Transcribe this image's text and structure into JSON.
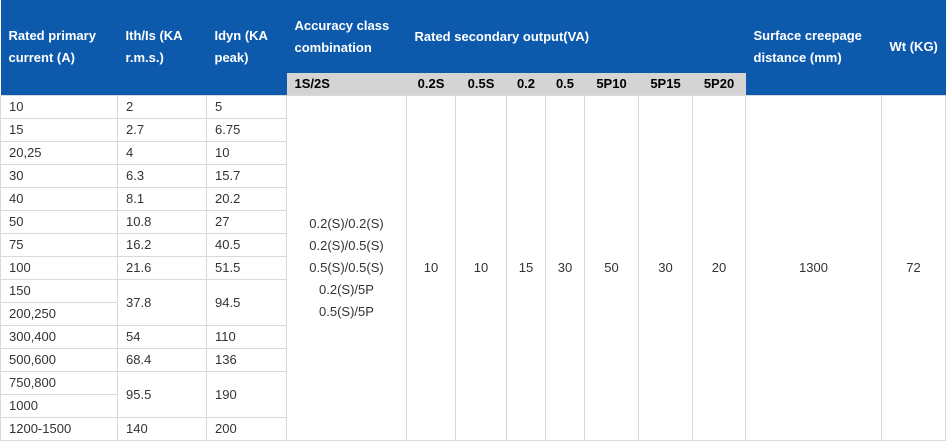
{
  "headers": {
    "rated_primary": "Rated primary current (A)",
    "ith": "Ith/Is (KA r.m.s.)",
    "idyn": "Idyn (KA peak)",
    "accuracy": "Accuracy class combination",
    "secondary": "Rated secondary output(VA)",
    "creepage": "Surface creepage distance (mm)",
    "wt": "Wt (KG)"
  },
  "subheaders": {
    "acc": "1S/2S",
    "o1": "0.2S",
    "o2": "0.5S",
    "o3": "0.2",
    "o4": "0.5",
    "o5": "5P10",
    "o6": "5P15",
    "o7": "5P20"
  },
  "rows": [
    {
      "current": "10",
      "ith": "2",
      "idyn": "5"
    },
    {
      "current": "15",
      "ith": "2.7",
      "idyn": "6.75"
    },
    {
      "current": "20,25",
      "ith": "4",
      "idyn": "10"
    },
    {
      "current": "30",
      "ith": "6.3",
      "idyn": "15.7"
    },
    {
      "current": "40",
      "ith": "8.1",
      "idyn": "20.2"
    },
    {
      "current": "50",
      "ith": "10.8",
      "idyn": "27"
    },
    {
      "current": "75",
      "ith": "16.2",
      "idyn": "40.5"
    },
    {
      "current": "100",
      "ith": "21.6",
      "idyn": "51.5"
    },
    {
      "current": "150",
      "ith": "37.8",
      "idyn": "94.5"
    },
    {
      "current": "200,250"
    },
    {
      "current": "300,400",
      "ith": "54",
      "idyn": "110"
    },
    {
      "current": "500,600",
      "ith": "68.4",
      "idyn": "136"
    },
    {
      "current": "750,800",
      "ith": "95.5",
      "idyn": "190"
    },
    {
      "current": "1000"
    },
    {
      "current": "1200-1500",
      "ith": "140",
      "idyn": "200"
    }
  ],
  "accuracy_lines": [
    "0.2(S)/0.2(S)",
    "0.2(S)/0.5(S)",
    "0.5(S)/0.5(S)",
    "0.2(S)/5P",
    "0.5(S)/5P"
  ],
  "outputs": {
    "o1": "10",
    "o2": "10",
    "o3": "15",
    "o4": "30",
    "o5": "50",
    "o6": "30",
    "o7": "20"
  },
  "creepage": "1300",
  "wt": "72"
}
